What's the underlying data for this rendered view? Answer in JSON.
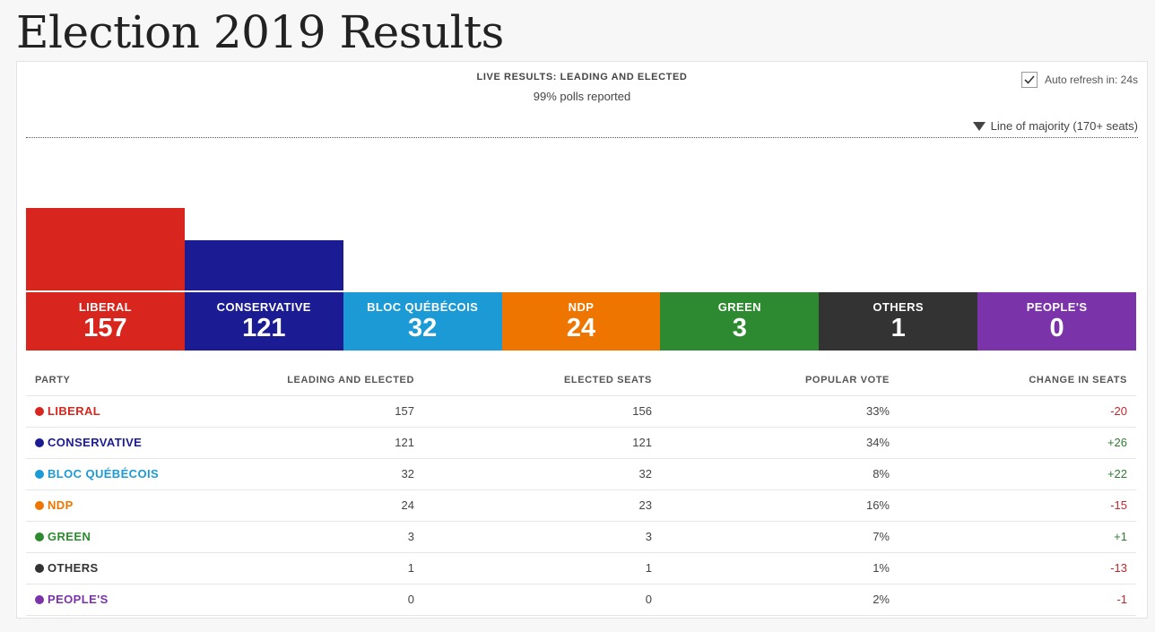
{
  "page": {
    "title": "Election 2019 Results"
  },
  "header": {
    "title": "LIVE RESULTS: LEADING AND ELECTED",
    "subtitle": "99% polls reported",
    "auto_refresh_label": "Auto refresh in: 24s",
    "auto_refresh_checked": true,
    "majority_label": "Line of majority (170+ seats)"
  },
  "chart_data": {
    "type": "bar",
    "title": "LIVE RESULTS: LEADING AND ELECTED",
    "categories": [
      "LIBERAL",
      "CONSERVATIVE",
      "BLOC QUÉBÉCOIS",
      "NDP",
      "GREEN",
      "OTHERS",
      "PEOPLE'S"
    ],
    "values": [
      157,
      121,
      32,
      24,
      3,
      1,
      0
    ],
    "majority_threshold": 170,
    "colors": [
      "#d8261e",
      "#1b1b94",
      "#1c9ad6",
      "#ee7500",
      "#2d8a30",
      "#333333",
      "#7a33a8"
    ]
  },
  "table": {
    "headers": {
      "party": "PARTY",
      "leading_elected": "LEADING AND ELECTED",
      "elected": "ELECTED SEATS",
      "popular_vote": "POPULAR VOTE",
      "change": "CHANGE IN SEATS"
    },
    "rows": [
      {
        "party": "LIBERAL",
        "color": "#d8261e",
        "leading_elected": "157",
        "elected": "156",
        "popular_vote": "33%",
        "change": "-20",
        "trend": "neg"
      },
      {
        "party": "CONSERVATIVE",
        "color": "#1b1b94",
        "leading_elected": "121",
        "elected": "121",
        "popular_vote": "34%",
        "change": "+26",
        "trend": "pos"
      },
      {
        "party": "BLOC QUÉBÉCOIS",
        "color": "#1c9ad6",
        "leading_elected": "32",
        "elected": "32",
        "popular_vote": "8%",
        "change": "+22",
        "trend": "pos"
      },
      {
        "party": "NDP",
        "color": "#ee7500",
        "leading_elected": "24",
        "elected": "23",
        "popular_vote": "16%",
        "change": "-15",
        "trend": "neg"
      },
      {
        "party": "GREEN",
        "color": "#2d8a30",
        "leading_elected": "3",
        "elected": "3",
        "popular_vote": "7%",
        "change": "+1",
        "trend": "pos"
      },
      {
        "party": "OTHERS",
        "color": "#333333",
        "leading_elected": "1",
        "elected": "1",
        "popular_vote": "1%",
        "change": "-13",
        "trend": "neg"
      },
      {
        "party": "PEOPLE'S",
        "color": "#7a33a8",
        "leading_elected": "0",
        "elected": "0",
        "popular_vote": "2%",
        "change": "-1",
        "trend": "neg"
      }
    ]
  }
}
